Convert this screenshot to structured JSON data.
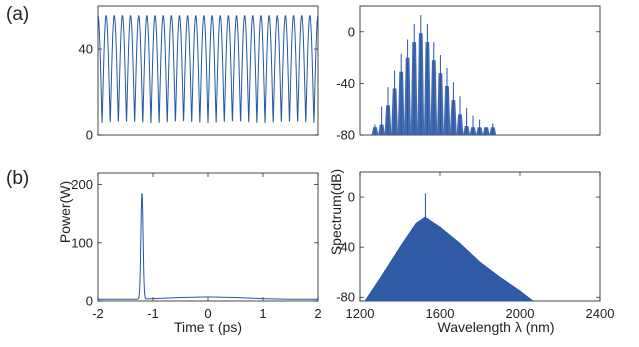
{
  "panel_labels": [
    "(a)",
    "(b)"
  ],
  "labels": {
    "power": "Power(W)",
    "spectrum": "Spectrum(dB)",
    "time": "Time τ (ps)",
    "wavelength": "Wavelength λ (nm)"
  },
  "colors": {
    "trace": "#2457a6",
    "fill": "#2f5aa5",
    "axis": "#1a1a1a"
  },
  "chart_data": [
    {
      "id": "a-time",
      "type": "line",
      "xlabel": "",
      "ylabel": "Power(W)",
      "xlim": [
        -2,
        2
      ],
      "ylim": [
        0,
        60
      ],
      "yticks": [
        0,
        40
      ],
      "pulse_count": 27,
      "peak_power": 55.5,
      "trough_power": 5.5,
      "grid": false
    },
    {
      "id": "a-spectrum",
      "type": "line",
      "xlabel": "",
      "ylabel": "Spectrum(dB)",
      "xlim": [
        1200,
        2400
      ],
      "ylim": [
        -80,
        20
      ],
      "yticks": [
        0,
        -40,
        -80
      ],
      "lines": [
        {
          "x": 1275,
          "y": -72
        },
        {
          "x": 1308,
          "y": -58
        },
        {
          "x": 1340,
          "y": -43
        },
        {
          "x": 1373,
          "y": -30
        },
        {
          "x": 1406,
          "y": -17
        },
        {
          "x": 1438,
          "y": -6
        },
        {
          "x": 1471,
          "y": 6
        },
        {
          "x": 1504,
          "y": 13
        },
        {
          "x": 1537,
          "y": 6
        },
        {
          "x": 1569,
          "y": -8
        },
        {
          "x": 1602,
          "y": -18
        },
        {
          "x": 1635,
          "y": -28
        },
        {
          "x": 1667,
          "y": -39
        },
        {
          "x": 1700,
          "y": -50
        },
        {
          "x": 1733,
          "y": -59
        },
        {
          "x": 1765,
          "y": -65
        },
        {
          "x": 1798,
          "y": -68
        },
        {
          "x": 1831,
          "y": -74
        },
        {
          "x": 1864,
          "y": -71
        }
      ],
      "grid": false
    },
    {
      "id": "b-time",
      "type": "line",
      "xlabel": "Time τ (ps)",
      "ylabel": "",
      "xlim": [
        -2,
        2
      ],
      "ylim": [
        0,
        220
      ],
      "xticks": [
        -2,
        -1,
        0,
        1,
        2
      ],
      "yticks": [
        0,
        100,
        200
      ],
      "peak": {
        "x": -1.2,
        "y": 185
      },
      "baseline": [
        {
          "x": -2,
          "y": 3
        },
        {
          "x": -1.3,
          "y": 3
        },
        {
          "x": -1.0,
          "y": 4
        },
        {
          "x": -0.5,
          "y": 6
        },
        {
          "x": 0,
          "y": 7
        },
        {
          "x": 0.5,
          "y": 6
        },
        {
          "x": 1.0,
          "y": 4
        },
        {
          "x": 1.5,
          "y": 3
        },
        {
          "x": 2,
          "y": 3
        }
      ],
      "grid": false
    },
    {
      "id": "b-spectrum",
      "type": "area",
      "xlabel": "Wavelength λ (nm)",
      "ylabel": "",
      "xlim": [
        1200,
        2400
      ],
      "ylim": [
        -83,
        20
      ],
      "xticks": [
        1200,
        1600,
        2000,
        2400
      ],
      "yticks": [
        0,
        -40,
        -80
      ],
      "envelope": [
        {
          "x": 1225,
          "y": -83
        },
        {
          "x": 1300,
          "y": -65
        },
        {
          "x": 1400,
          "y": -40
        },
        {
          "x": 1480,
          "y": -21
        },
        {
          "x": 1525,
          "y": -16
        },
        {
          "x": 1600,
          "y": -24
        },
        {
          "x": 1700,
          "y": -37
        },
        {
          "x": 1800,
          "y": -52
        },
        {
          "x": 1900,
          "y": -64
        },
        {
          "x": 2000,
          "y": -75
        },
        {
          "x": 2065,
          "y": -83
        }
      ],
      "spike": {
        "x": 1527,
        "y": 3
      },
      "grid": false
    }
  ]
}
